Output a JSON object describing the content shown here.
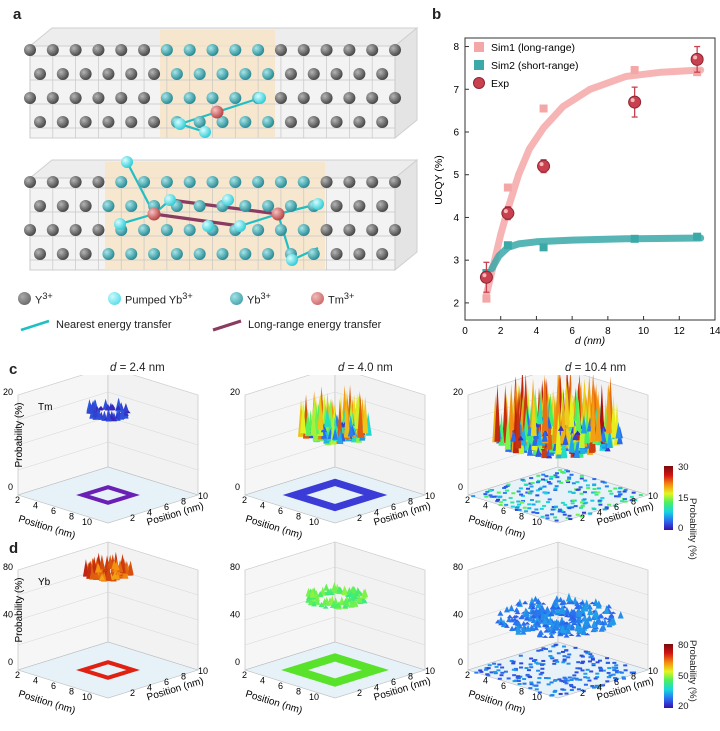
{
  "panel_labels": {
    "a": "a",
    "b": "b",
    "c": "c",
    "d": "d"
  },
  "panel_a": {
    "legend": {
      "y": "Y",
      "y_sup": "3+",
      "pumped_yb": "Pumped Yb",
      "pumped_yb_sup": "3+",
      "yb": "Yb",
      "yb_sup": "3+",
      "tm": "Tm",
      "tm_sup": "3+",
      "nearest": "Nearest energy transfer",
      "long_range": "Long-range energy transfer"
    },
    "colors": {
      "y": "#6d6d6d",
      "pumped_yb": "#5fe0e8",
      "yb": "#3f9ea6",
      "tm": "#d46a6a",
      "nearest": "#1fbfc4",
      "long_range": "#8a3b62"
    }
  },
  "chart_data": {
    "type": "scatter",
    "title": "",
    "xlabel": "d (nm)",
    "ylabel": "UCQY (%)",
    "xlim": [
      0,
      14
    ],
    "ylim": [
      1.6,
      8.2
    ],
    "xticks": [
      "0",
      "2",
      "4",
      "6",
      "8",
      "10",
      "12",
      "14"
    ],
    "yticks": [
      "2",
      "3",
      "4",
      "5",
      "6",
      "7",
      "8"
    ],
    "legend_position": "top-left",
    "series": [
      {
        "name": "Sim1 (long-range)",
        "color": "#f4a7a7",
        "style": "curve+squares",
        "points": [
          [
            1.2,
            2.1
          ],
          [
            2.4,
            4.7
          ],
          [
            4.4,
            6.55
          ],
          [
            9.5,
            7.45
          ],
          [
            13.0,
            7.4
          ]
        ],
        "curve": [
          [
            1.2,
            2.2
          ],
          [
            1.6,
            2.9
          ],
          [
            2.0,
            3.6
          ],
          [
            2.4,
            4.2
          ],
          [
            3.0,
            5.0
          ],
          [
            3.6,
            5.6
          ],
          [
            4.4,
            6.1
          ],
          [
            5.5,
            6.6
          ],
          [
            7.0,
            7.0
          ],
          [
            9.0,
            7.3
          ],
          [
            11.0,
            7.4
          ],
          [
            13.2,
            7.45
          ]
        ]
      },
      {
        "name": "Sim2 (short-range)",
        "color": "#3aa9a8",
        "style": "curve+squares",
        "points": [
          [
            1.2,
            2.7
          ],
          [
            2.4,
            3.35
          ],
          [
            4.4,
            3.3
          ],
          [
            9.5,
            3.5
          ],
          [
            13.0,
            3.55
          ]
        ],
        "curve": [
          [
            1.5,
            2.8
          ],
          [
            1.9,
            3.1
          ],
          [
            2.4,
            3.3
          ],
          [
            3.0,
            3.38
          ],
          [
            4.0,
            3.43
          ],
          [
            6.0,
            3.47
          ],
          [
            9.0,
            3.5
          ],
          [
            13.2,
            3.52
          ]
        ]
      },
      {
        "name": "Exp",
        "color": "#c9414f",
        "style": "points+errorbars",
        "points": [
          [
            1.2,
            2.6
          ],
          [
            2.4,
            4.1
          ],
          [
            4.4,
            5.2
          ],
          [
            9.5,
            6.7
          ],
          [
            13.0,
            7.7
          ]
        ],
        "errors": [
          0.35,
          0.15,
          0.15,
          0.35,
          0.3
        ]
      }
    ]
  },
  "panel_c": {
    "titles": [
      "d = 2.4 nm",
      "d = 4.0 nm",
      "d = 10.4 nm"
    ],
    "title_var": "d",
    "title_vals": [
      " = 2.4 nm",
      " = 4.0 nm",
      " = 10.4 nm"
    ],
    "ion": "Tm",
    "zlabel": "Probability (%)",
    "zticks": [
      "20",
      "0"
    ],
    "xlabel": "Position (nm)",
    "ylabel": "Position (nm)",
    "axis_ticks": [
      "2",
      "4",
      "6",
      "8",
      "10"
    ],
    "colorbar": {
      "label": "Probability (%)",
      "ticks": [
        "30",
        "15",
        "0"
      ]
    }
  },
  "panel_d": {
    "ion": "Yb",
    "zlabel": "Probability (%)",
    "zticks": [
      "80",
      "40",
      "0"
    ],
    "xlabel": "Position (nm)",
    "ylabel": "Position (nm)",
    "axis_ticks": [
      "2",
      "4",
      "6",
      "8",
      "10"
    ],
    "colorbar": {
      "label": "Probability (%)",
      "ticks": [
        "80",
        "50",
        "20"
      ]
    }
  }
}
